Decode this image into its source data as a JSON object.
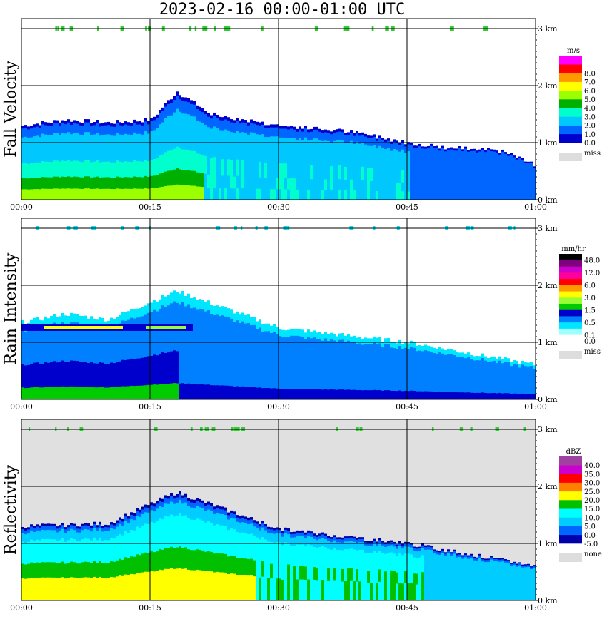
{
  "title": "2023-02-16   00:00-01:00 UTC",
  "chart_data": [
    {
      "type": "heatmap",
      "ylabel": "Fall Velocity",
      "units": "m/s",
      "x_ticks": [
        "00:00",
        "00:15",
        "00:30",
        "00:45",
        "01:00"
      ],
      "y_ticks": [
        "0 km",
        "1 km",
        "2 km",
        "3 km"
      ],
      "ylim_km": [
        0,
        3.1
      ],
      "missing_label": "miss",
      "colorbar": [
        {
          "label": "0.0",
          "color": "#0000cc"
        },
        {
          "label": "1.0",
          "color": "#0066ff"
        },
        {
          "label": "2.0",
          "color": "#00c8ff"
        },
        {
          "label": "3.0",
          "color": "#00ffcc"
        },
        {
          "label": "4.0",
          "color": "#00b000"
        },
        {
          "label": "5.0",
          "color": "#9cff00"
        },
        {
          "label": "6.0",
          "color": "#ffff00"
        },
        {
          "label": "7.0",
          "color": "#ff9900"
        },
        {
          "label": "8.0",
          "color": "#ff0000"
        },
        {
          "label": "",
          "color": "#ff00ff"
        }
      ],
      "echo_top_km": [
        {
          "t": "00:00",
          "top": 1.3
        },
        {
          "t": "00:05",
          "top": 1.4
        },
        {
          "t": "00:10",
          "top": 1.35
        },
        {
          "t": "00:15",
          "top": 1.4
        },
        {
          "t": "00:18",
          "top": 1.9
        },
        {
          "t": "00:22",
          "top": 1.5
        },
        {
          "t": "00:30",
          "top": 1.3
        },
        {
          "t": "00:38",
          "top": 1.2
        },
        {
          "t": "00:45",
          "top": 1.0
        },
        {
          "t": "00:50",
          "top": 0.9
        },
        {
          "t": "00:55",
          "top": 0.9
        },
        {
          "t": "01:00",
          "top": 0.6
        }
      ]
    },
    {
      "type": "heatmap",
      "ylabel": "Rain Intensity",
      "units": "mm/hr",
      "x_ticks": [
        "00:00",
        "00:15",
        "00:30",
        "00:45",
        "01:00"
      ],
      "y_ticks": [
        "0 km",
        "1 km",
        "2 km",
        "3 km"
      ],
      "ylim_km": [
        0,
        3.1
      ],
      "missing_label": "miss",
      "colorbar": [
        {
          "label": "0.0",
          "color": "#ffffff"
        },
        {
          "label": "0.1",
          "color": "#a0ffff"
        },
        {
          "label": "",
          "color": "#00e6ff"
        },
        {
          "label": "0.5",
          "color": "#0080ff"
        },
        {
          "label": "",
          "color": "#0000cc"
        },
        {
          "label": "1.5",
          "color": "#00cc00"
        },
        {
          "label": "",
          "color": "#99ff33"
        },
        {
          "label": "3.0",
          "color": "#ffff00"
        },
        {
          "label": "",
          "color": "#ff9900"
        },
        {
          "label": "6.0",
          "color": "#ff0000"
        },
        {
          "label": "",
          "color": "#ff0099"
        },
        {
          "label": "12.0",
          "color": "#cc00cc"
        },
        {
          "label": "",
          "color": "#800080"
        },
        {
          "label": "48.0",
          "color": "#000000"
        }
      ],
      "bright_band_km": 1.25,
      "echo_top_km": [
        {
          "t": "00:00",
          "top": 1.35
        },
        {
          "t": "00:05",
          "top": 1.5
        },
        {
          "t": "00:10",
          "top": 1.4
        },
        {
          "t": "00:18",
          "top": 1.9
        },
        {
          "t": "00:30",
          "top": 1.25
        },
        {
          "t": "00:45",
          "top": 1.0
        },
        {
          "t": "01:00",
          "top": 0.6
        }
      ]
    },
    {
      "type": "heatmap",
      "ylabel": "Reflectivity",
      "units": "dBZ",
      "x_ticks": [
        "00:00",
        "00:15",
        "00:30",
        "00:45",
        "01:00"
      ],
      "y_ticks": [
        "0 km",
        "1 km",
        "2 km",
        "3 km"
      ],
      "ylim_km": [
        0,
        3.1
      ],
      "missing_label": "none",
      "colorbar": [
        {
          "label": "-5.0",
          "color": "#0000aa"
        },
        {
          "label": "0.0",
          "color": "#0066ff"
        },
        {
          "label": "5.0",
          "color": "#00ccff"
        },
        {
          "label": "10.0",
          "color": "#00ffff"
        },
        {
          "label": "15.0",
          "color": "#00c000"
        },
        {
          "label": "20.0",
          "color": "#ffff00"
        },
        {
          "label": "25.0",
          "color": "#ff8000"
        },
        {
          "label": "30.0",
          "color": "#ff0000"
        },
        {
          "label": "35.0",
          "color": "#cc00cc"
        },
        {
          "label": "40.0",
          "color": "#a040a0"
        }
      ],
      "echo_top_km": [
        {
          "t": "00:00",
          "top": 1.3
        },
        {
          "t": "00:10",
          "top": 1.35
        },
        {
          "t": "00:18",
          "top": 1.9
        },
        {
          "t": "00:30",
          "top": 1.25
        },
        {
          "t": "00:45",
          "top": 1.0
        },
        {
          "t": "01:00",
          "top": 0.6
        }
      ]
    }
  ]
}
